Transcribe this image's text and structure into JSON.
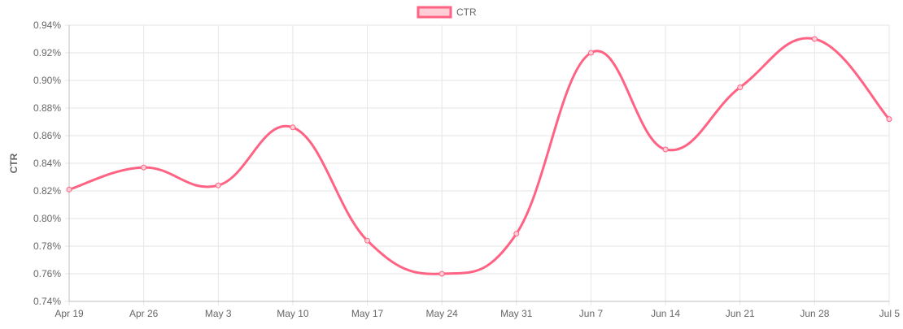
{
  "chart_data": {
    "type": "line",
    "title": "",
    "xlabel": "",
    "ylabel": "CTR",
    "legend_position": "top-center",
    "grid": true,
    "categories": [
      "Apr 19",
      "Apr 26",
      "May 3",
      "May 10",
      "May 17",
      "May 24",
      "May 31",
      "Jun 7",
      "Jun 14",
      "Jun 21",
      "Jun 28",
      "Jul 5"
    ],
    "ylim": [
      0.74,
      0.94
    ],
    "y_ticks": [
      "0.74%",
      "0.76%",
      "0.78%",
      "0.80%",
      "0.82%",
      "0.84%",
      "0.86%",
      "0.88%",
      "0.90%",
      "0.92%",
      "0.94%"
    ],
    "series": [
      {
        "name": "CTR",
        "color": "#ff6384",
        "fill_color": "#ffcdd6",
        "values": [
          0.821,
          0.837,
          0.824,
          0.866,
          0.784,
          0.76,
          0.789,
          0.92,
          0.85,
          0.895,
          0.93,
          0.872
        ]
      }
    ]
  }
}
